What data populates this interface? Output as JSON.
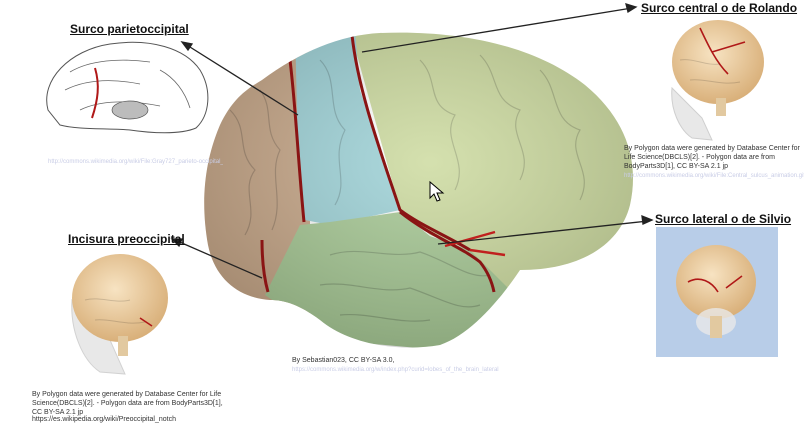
{
  "labels": {
    "parieto": "Surco parietoccipital",
    "central": "Surco central o de Rolando",
    "lateral": "Surco lateral o de Silvio",
    "preocc": "Incisura preoccipital"
  },
  "credits": {
    "central": "By Polygon data were generated by Database Center for Life Science(DBCLS)[2]. - Polygon data are from BodyParts3D[1], CC BY-SA 2.1 jp",
    "preocc": "By Polygon data were generated by Database Center for Life Science(DBCLS)[2]. - Polygon data are from BodyParts3D[1], CC BY-SA 2.1 jp",
    "preocc_url": "https://es.wikipedia.org/wiki/Preoccipital_notch",
    "main": "By Sebastian023, CC BY-SA 3.0,"
  },
  "faint_links": {
    "parieto": "http://commons.wikimedia.org/wiki/File:Gray727_parieto-occipital_fissure.svg",
    "central": "http://commons.wikimedia.org/wiki/File:Central_sulcus_animation.gif",
    "main": "https://commons.wikimedia.org/w/index.php?curid=lobes_of_the_brain_lateral"
  },
  "colors": {
    "occipital": "#c9a98a",
    "parietal": "#9fd3d8",
    "frontal": "#cddba0",
    "temporal": "#a8ca96",
    "sulcus": "#8a1414",
    "preview_bg": "#b8cde8"
  }
}
